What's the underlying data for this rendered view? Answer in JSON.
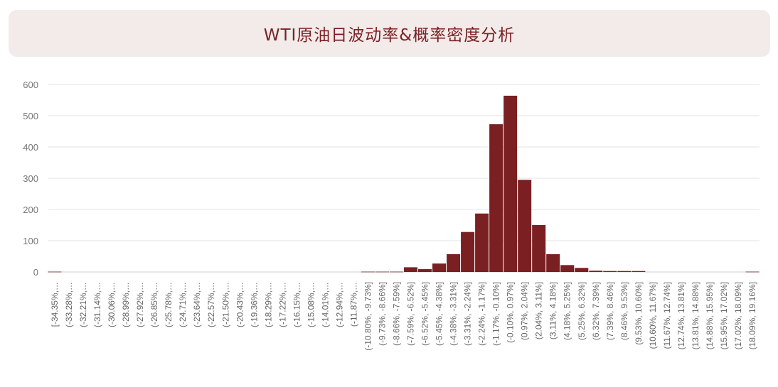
{
  "colors": {
    "bar": "#7a1f22",
    "title_bg": "#f2ebea",
    "title_text": "#7a1f22",
    "grid": "#e3e3e3"
  },
  "chart_data": {
    "type": "bar",
    "title": "WTI原油日波动率&概率密度分析",
    "xlabel": "",
    "ylabel": "",
    "ylim": [
      0,
      600
    ],
    "yticks": [
      0,
      100,
      200,
      300,
      400,
      500,
      600
    ],
    "grid": true,
    "categories": [
      "[-34.35%,…",
      "(-33.28%,…",
      "(-32.21%,…",
      "(-31.14%,…",
      "(-30.06%,…",
      "(-28.99%,…",
      "(-27.92%,…",
      "(-26.85%,…",
      "(-25.78%,…",
      "(-24.71%,…",
      "(-23.64%,…",
      "(-22.57%,…",
      "(-21.50%,…",
      "(-20.43%,…",
      "(-19.36%,…",
      "(-18.29%,…",
      "(-17.22%,…",
      "(-16.15%,…",
      "(-15.08%,…",
      "(-14.01%,…",
      "(-12.94%,…",
      "(-11.87%,…",
      "(-10.80%, -9.73%]",
      "(-9.73%, -8.66%]",
      "(-8.66%, -7.59%]",
      "(-7.59%, -6.52%]",
      "(-6.52%, -5.45%]",
      "(-5.45%, -4.38%]",
      "(-4.38%, -3.31%]",
      "(-3.31%, -2.24%]",
      "(-2.24%, -1.17%]",
      "(-1.17%, -0.10%]",
      "(-0.10%, 0.97%]",
      "(0.97%, 2.04%]",
      "(2.04%, 3.11%]",
      "(3.11%, 4.18%]",
      "(4.18%, 5.25%]",
      "(5.25%, 6.32%]",
      "(6.32%, 7.39%]",
      "(7.39%, 8.46%]",
      "(8.46%, 9.53%]",
      "(9.53%, 10.60%]",
      "(10.60%, 11.67%]",
      "(11.67%, 12.74%]",
      "(12.74%, 13.81%]",
      "(13.81%, 14.88%]",
      "(14.88%, 15.95%]",
      "(15.95%, 17.02%]",
      "(17.02%, 18.09%]",
      "(18.09%, 19.16%]"
    ],
    "values": [
      1,
      0,
      0,
      0,
      0,
      0,
      0,
      0,
      0,
      0,
      0,
      0,
      0,
      0,
      0,
      0,
      0,
      0,
      0,
      0,
      0,
      0,
      1,
      1,
      1,
      15,
      9,
      27,
      57,
      128,
      187,
      473,
      564,
      295,
      150,
      57,
      22,
      13,
      4,
      3,
      3,
      3,
      0,
      0,
      0,
      0,
      0,
      0,
      0,
      1
    ]
  }
}
